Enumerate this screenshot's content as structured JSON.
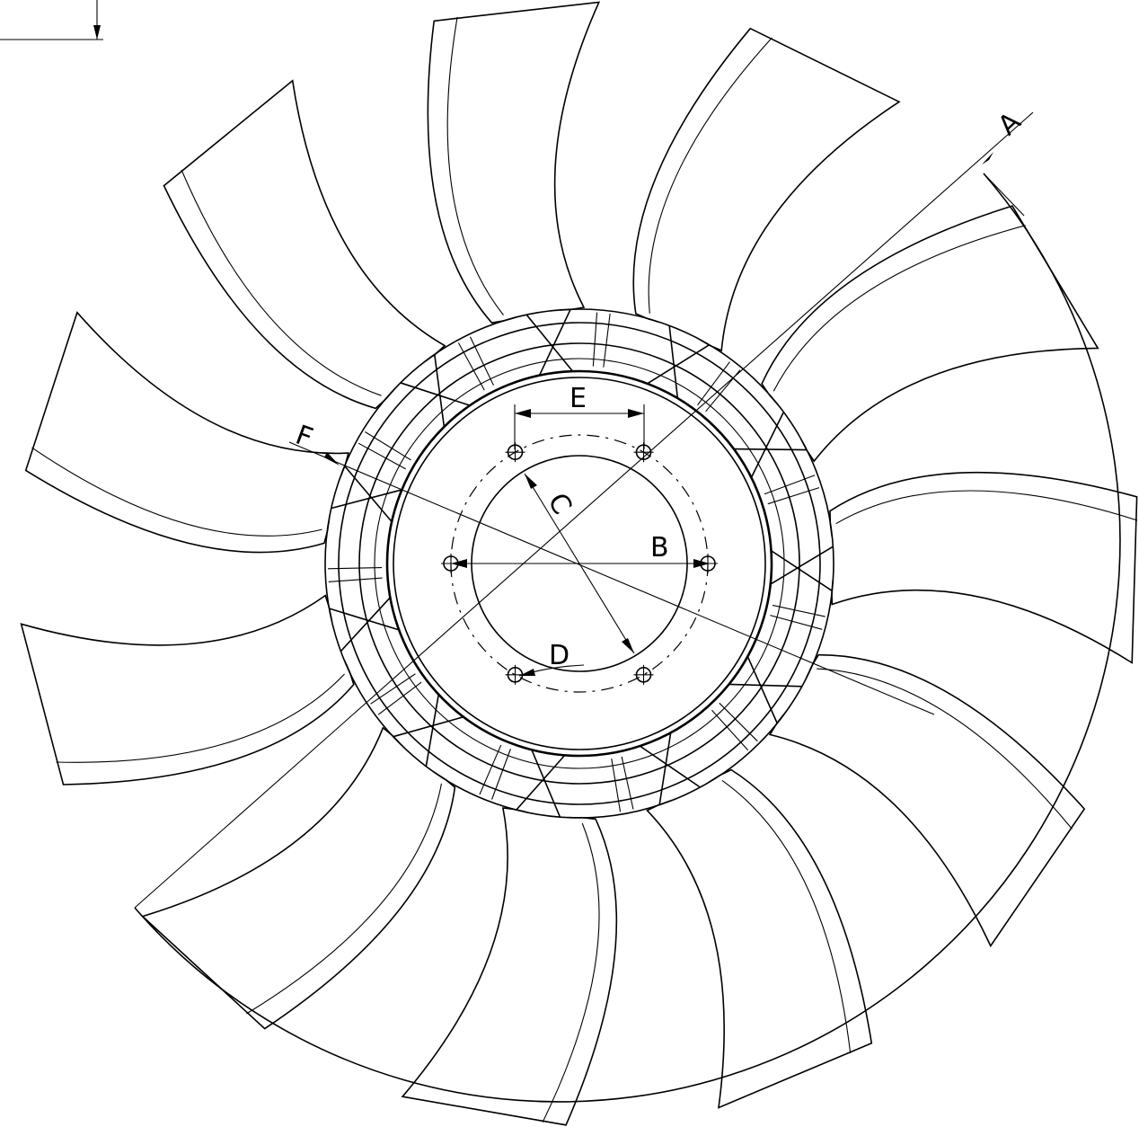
{
  "drawing": {
    "subject": "fan",
    "blade_count": 11,
    "bolt_holes": 6,
    "stroke_color": "#000000",
    "background_color": "#ffffff"
  },
  "labels": {
    "a": "A",
    "b": "B",
    "c": "C",
    "d": "D",
    "e": "E",
    "f": "F"
  }
}
